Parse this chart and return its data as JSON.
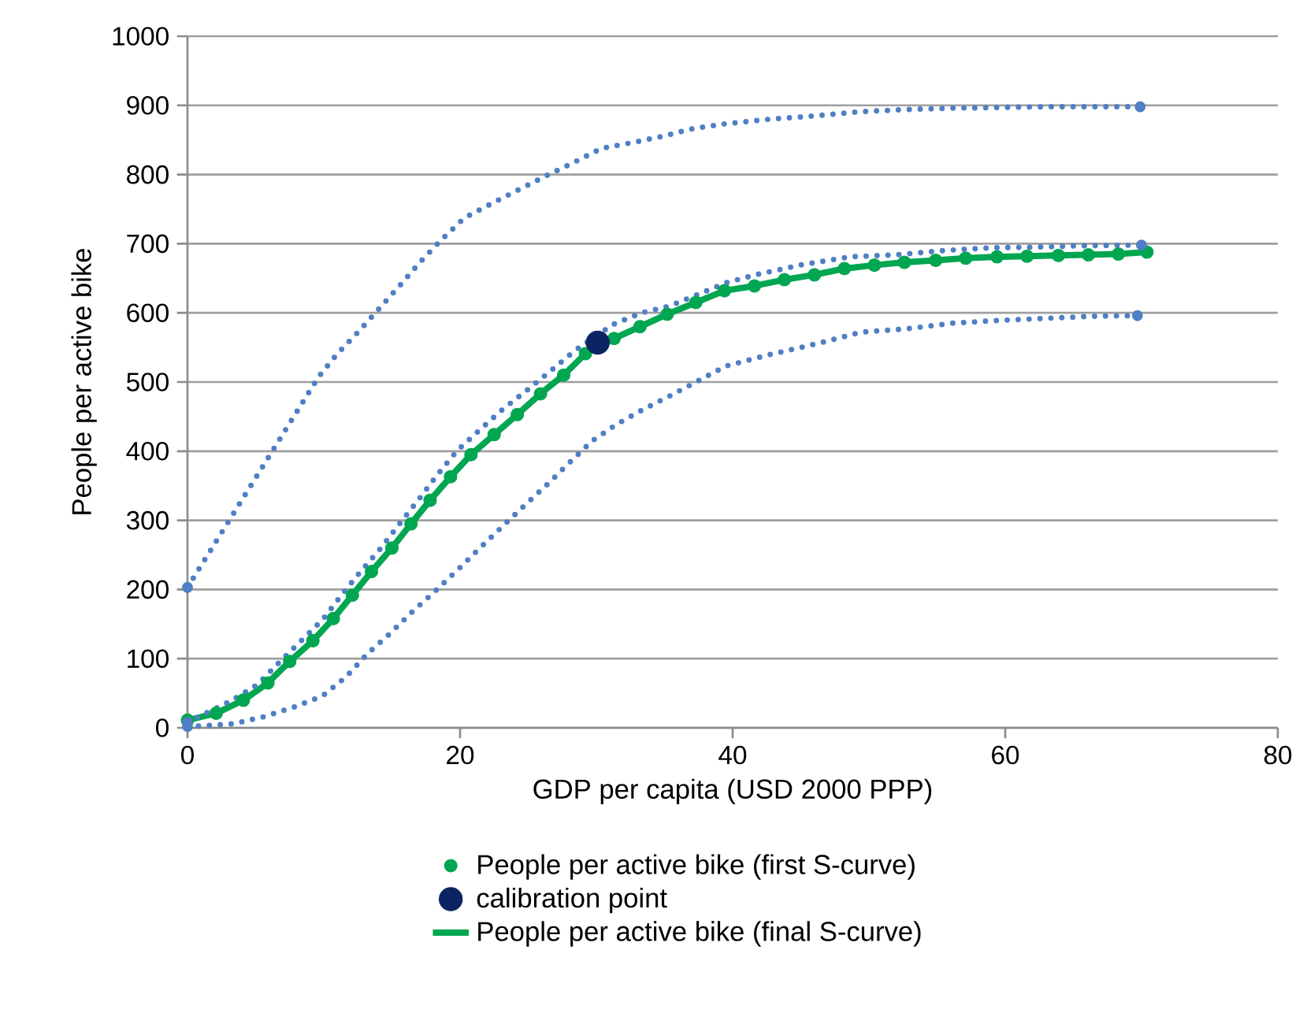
{
  "chart_data": {
    "type": "line",
    "xlabel": "GDP per capita (USD 2000 PPP)",
    "ylabel": "People per active bike",
    "xlim": [
      0,
      80
    ],
    "ylim": [
      0,
      1000
    ],
    "xticks": [
      0,
      20,
      40,
      60,
      80
    ],
    "yticks": [
      0,
      100,
      200,
      300,
      400,
      500,
      600,
      700,
      800,
      900,
      1000
    ],
    "grid": "y",
    "legend": "bottom",
    "series": [
      {
        "type": "scatter",
        "name": "People per active bike (first S-curve)",
        "color": "#00a650",
        "marker": "circle",
        "x": [
          0,
          2.1,
          4.1,
          5.9,
          7.5,
          9.2,
          10.7,
          12.1,
          13.5,
          15.0,
          16.4,
          17.8,
          19.3,
          20.8,
          22.5,
          24.2,
          25.9,
          27.6,
          29.2,
          31.3,
          33.2,
          35.2,
          37.3,
          39.4,
          41.6,
          43.8,
          46.0,
          48.2,
          50.4,
          52.6,
          54.9,
          57.1,
          59.4,
          61.6,
          63.9,
          66.1,
          68.3,
          70.4
        ],
        "values": [
          11,
          21,
          40,
          65,
          96,
          126,
          158,
          192,
          226,
          260,
          295,
          329,
          363,
          395,
          424,
          453,
          483,
          510,
          541,
          563,
          580,
          598,
          615,
          632,
          639,
          648,
          655,
          664,
          669,
          673,
          676,
          679,
          681,
          682,
          683,
          684,
          685,
          688
        ]
      },
      {
        "type": "scatter",
        "name": "calibration point",
        "color": "#0c2461",
        "marker": "circle",
        "x": [
          30.1
        ],
        "values": [
          557
        ]
      },
      {
        "name": "People per active bike (final S-curve)",
        "color": "#00a650",
        "line_style": "solid",
        "x": [
          0,
          2.1,
          4.1,
          5.9,
          7.5,
          9.2,
          10.7,
          12.1,
          13.5,
          15.0,
          16.4,
          17.8,
          19.3,
          20.8,
          22.5,
          24.2,
          25.9,
          27.6,
          29.2,
          31.3,
          33.2,
          35.2,
          37.3,
          39.4,
          41.6,
          43.8,
          46.0,
          48.2,
          50.4,
          52.6,
          54.9,
          57.1,
          59.4,
          61.6,
          63.9,
          66.1,
          68.3,
          70.4
        ],
        "values": [
          11,
          21,
          40,
          65,
          96,
          126,
          158,
          192,
          226,
          260,
          295,
          329,
          363,
          395,
          424,
          453,
          483,
          510,
          541,
          563,
          580,
          598,
          615,
          632,
          639,
          648,
          655,
          664,
          669,
          673,
          676,
          679,
          681,
          682,
          683,
          684,
          685,
          688
        ]
      },
      {
        "color": "#4f7fc4",
        "line_style": "dotted",
        "x": [
          0,
          2.4,
          3.6,
          4.8,
          6.0,
          7.2,
          8.4,
          9.6,
          11.0,
          12.6,
          14.1,
          15.6,
          17.1,
          18.6,
          20.3,
          22.3,
          24.3,
          26.3,
          28.4,
          30.4,
          32.6,
          34.8,
          37.0,
          39.3,
          42.7,
          46.1,
          49.4,
          52.8,
          56.2,
          59.7,
          63.0,
          69.9
        ],
        "values": [
          203,
          279,
          317,
          355,
          393,
          431,
          469,
          507,
          541,
          574,
          607,
          640,
          674,
          705,
          737,
          758,
          778,
          798,
          818,
          838,
          846,
          855,
          866,
          873,
          880,
          885,
          891,
          894,
          896,
          897,
          898,
          898
        ]
      },
      {
        "color": "#4f7fc4",
        "line_style": "dotted",
        "x": [
          0,
          3.2,
          5.1,
          6.7,
          8.3,
          9.9,
          11.3,
          12.7,
          14.2,
          15.6,
          17.0,
          18.3,
          19.8,
          21.4,
          23.1,
          24.9,
          26.7,
          28.4,
          31.2,
          33.3,
          35.4,
          37.5,
          39.6,
          41.9,
          45.2,
          48.6,
          52.0,
          55.4,
          58.8,
          62.2,
          65.5,
          70.0
        ],
        "values": [
          8,
          39,
          62,
          94,
          125,
          156,
          192,
          226,
          260,
          296,
          331,
          365,
          401,
          430,
          460,
          488,
          517,
          545,
          583,
          600,
          610,
          627,
          644,
          656,
          670,
          681,
          684,
          690,
          694,
          695,
          697,
          698
        ]
      },
      {
        "color": "#4f7fc4",
        "line_style": "dotted",
        "x": [
          0,
          1.2,
          3.4,
          5.6,
          7.8,
          9.9,
          11.6,
          13.2,
          14.9,
          16.5,
          18.2,
          19.8,
          21.4,
          23.1,
          24.7,
          26.4,
          28.0,
          29.7,
          31.5,
          33.4,
          35.5,
          37.5,
          39.5,
          42.8,
          46.1,
          49.4,
          52.8,
          56.1,
          59.5,
          62.9,
          66.3,
          69.7
        ],
        "values": [
          2,
          3,
          6,
          16,
          30,
          46,
          73,
          107,
          137,
          168,
          198,
          228,
          259,
          291,
          321,
          352,
          383,
          415,
          439,
          460,
          481,
          502,
          523,
          540,
          555,
          572,
          577,
          585,
          589,
          592,
          595,
          596
        ]
      }
    ]
  }
}
